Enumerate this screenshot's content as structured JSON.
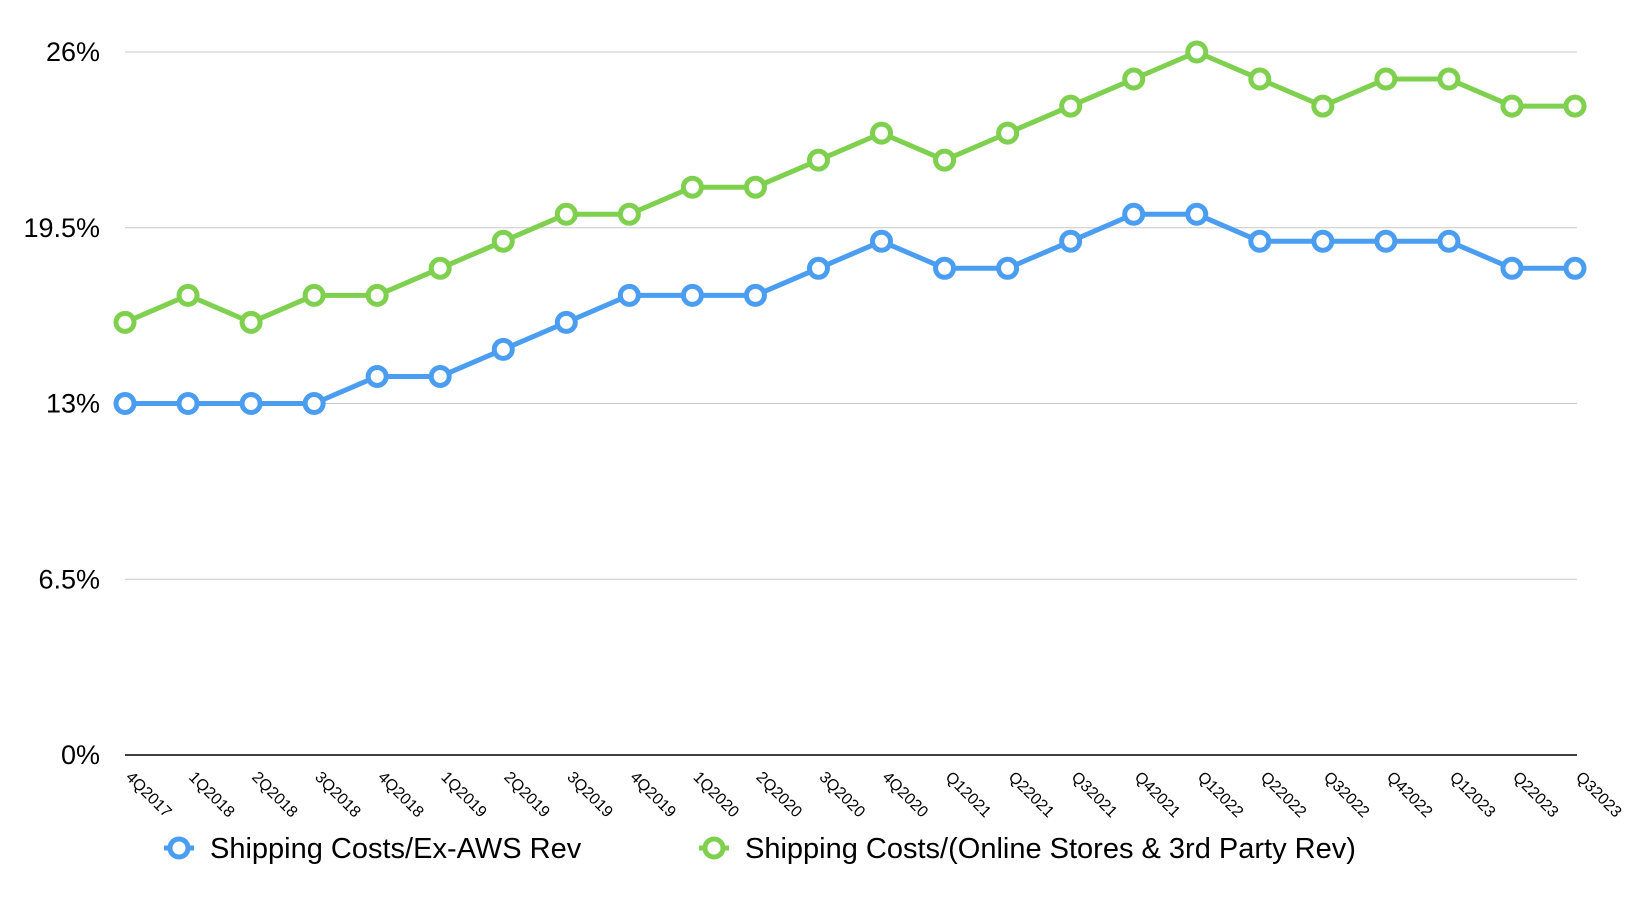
{
  "chart_data": {
    "type": "line",
    "title": "",
    "xlabel": "",
    "ylabel": "",
    "ylim": [
      0,
      26
    ],
    "y_ticks": [
      0,
      6.5,
      13,
      19.5,
      26
    ],
    "y_tick_labels": [
      "0%",
      "6.5%",
      "13%",
      "19.5%",
      "26%"
    ],
    "grid": true,
    "legend_position": "bottom-left",
    "categories": [
      "4Q2017",
      "1Q2018",
      "2Q2018",
      "3Q2018",
      "4Q2018",
      "1Q2019",
      "2Q2019",
      "3Q2019",
      "4Q2019",
      "1Q2020",
      "2Q2020",
      "3Q2020",
      "4Q2020",
      "Q12021",
      "Q22021",
      "Q32021",
      "Q42021",
      "Q12022",
      "Q22022",
      "Q32022",
      "Q42022",
      "Q12023",
      "Q22023",
      "Q32023"
    ],
    "series": [
      {
        "name": "Shipping Costs/Ex-AWS Rev",
        "color": "#4a9df0",
        "values": [
          13,
          13,
          13,
          13,
          14,
          14,
          15,
          16,
          17,
          17,
          17,
          18,
          19,
          18,
          18,
          19,
          20,
          20,
          19,
          19,
          19,
          19,
          18,
          18
        ]
      },
      {
        "name": "Shipping Costs/(Online Stores & 3rd Party Rev)",
        "color": "#7ed04e",
        "values": [
          16,
          17,
          16,
          17,
          17,
          18,
          19,
          20,
          20,
          21,
          21,
          22,
          23,
          22,
          23,
          24,
          25,
          26,
          25,
          24,
          25,
          25,
          24,
          24
        ]
      }
    ]
  }
}
